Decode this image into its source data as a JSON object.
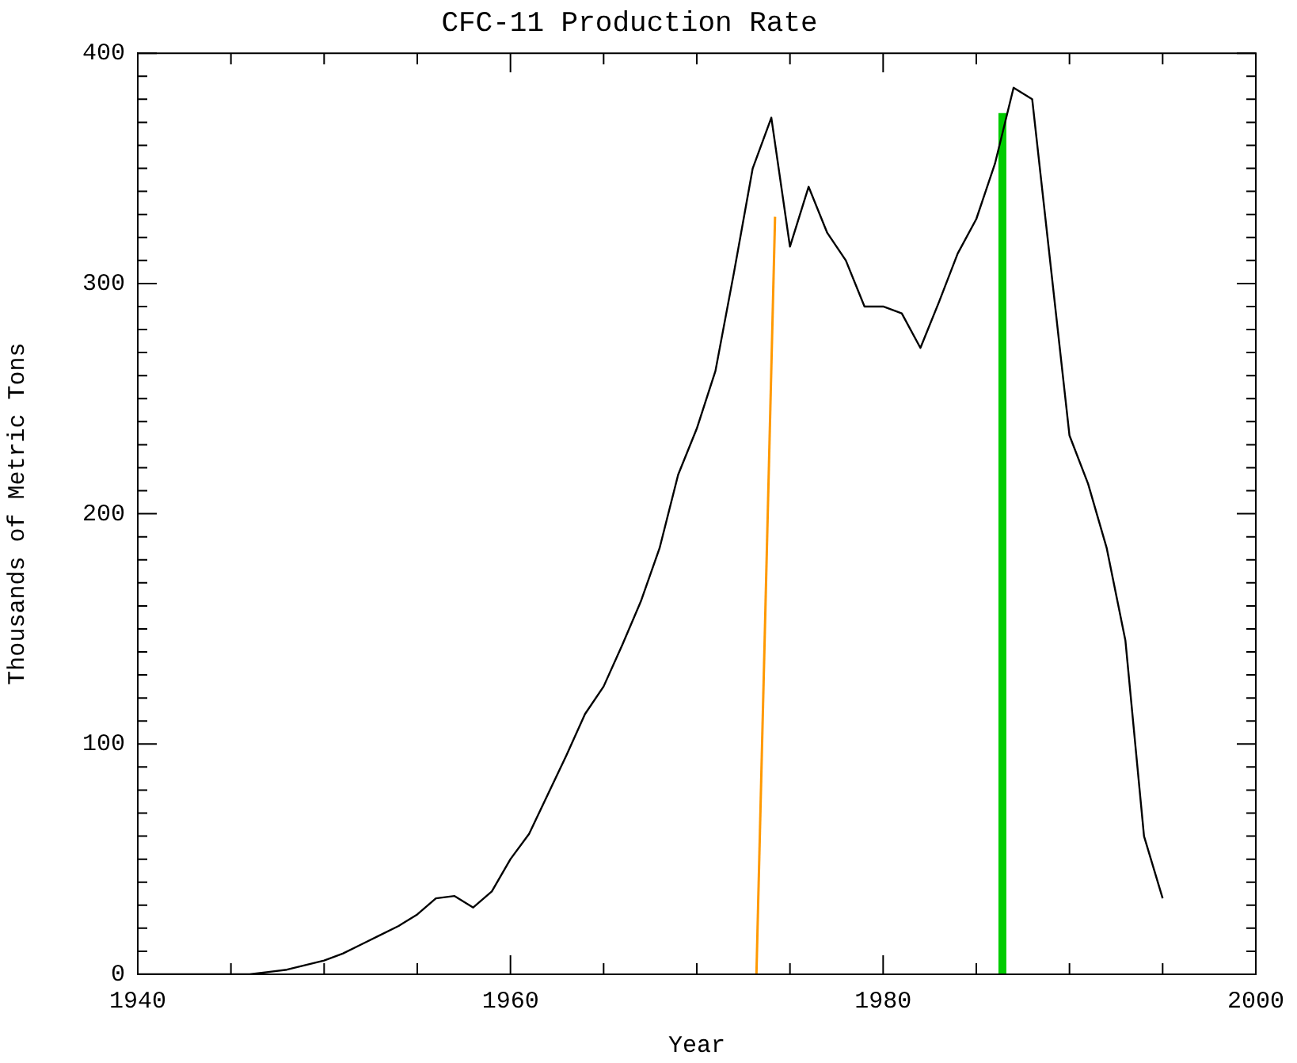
{
  "chart_data": {
    "type": "line",
    "title": "CFC-11 Production Rate",
    "xlabel": "Year",
    "ylabel": "Thousands of Metric Tons",
    "xlim": [
      1940,
      2000
    ],
    "ylim": [
      0,
      400
    ],
    "xticks": [
      1940,
      {
        "value": 1945,
        "label": null
      },
      {
        "value": 1950,
        "label": null
      },
      {
        "value": 1955,
        "label": null
      },
      1960,
      {
        "value": 1965,
        "label": null
      },
      {
        "value": 1970,
        "label": null
      },
      {
        "value": 1975,
        "label": null
      },
      1980,
      {
        "value": 1985,
        "label": null
      },
      {
        "value": 1990,
        "label": null
      },
      {
        "value": 1995,
        "label": null
      },
      2000
    ],
    "yticks": [
      0,
      100,
      200,
      300,
      400
    ],
    "grid": false,
    "legend": false,
    "marker": "none",
    "line_style": "solid",
    "series": [
      {
        "color": "#000000",
        "x": [
          1940,
          1946,
          1947,
          1948,
          1949,
          1950,
          1951,
          1952,
          1953,
          1954,
          1955,
          1956,
          1957,
          1958,
          1959,
          1960,
          1961,
          1962,
          1963,
          1964,
          1965,
          1966,
          1967,
          1968,
          1969,
          1970,
          1971,
          1972,
          1973,
          1974,
          1975,
          1976,
          1977,
          1978,
          1979,
          1980,
          1981,
          1982,
          1983,
          1984,
          1985,
          1986,
          1987,
          1988,
          1990,
          1991,
          1992,
          1993,
          1994,
          1995
        ],
        "values": [
          0,
          0,
          1,
          2,
          4,
          6,
          9,
          13,
          17,
          21,
          26,
          33,
          34,
          29,
          36,
          50,
          61,
          78,
          95,
          113,
          125,
          143,
          162,
          185,
          217,
          237,
          262,
          305,
          350,
          372,
          316,
          342,
          322,
          310,
          290,
          290,
          287,
          272,
          292,
          313,
          328,
          352,
          385,
          380,
          234,
          213,
          185,
          145,
          60,
          33
        ]
      },
      {
        "color": "#ff9900",
        "x": [
          1973.2,
          1974.2
        ],
        "values": [
          0,
          329
        ]
      },
      {
        "color": "#00cc00",
        "x": [
          1986.4,
          1986.4
        ],
        "values": [
          0,
          374
        ]
      }
    ]
  }
}
